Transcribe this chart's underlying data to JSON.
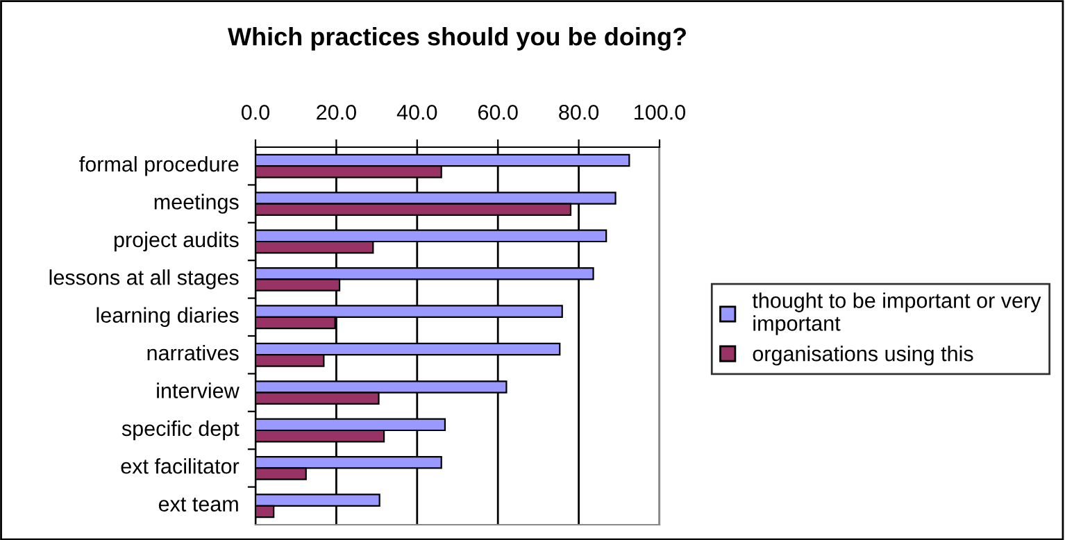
{
  "chart_data": {
    "type": "bar",
    "orientation": "horizontal",
    "title": "Which practices should you be doing?",
    "categories": [
      "formal procedure",
      "meetings",
      "project audits",
      "lessons at all stages",
      "learning diaries",
      "narratives",
      "interview",
      "specific dept",
      "ext facilitator",
      "ext team"
    ],
    "series": [
      {
        "name": "thought to be important or very\nimportant",
        "color": "#9999ff",
        "values": [
          92.5,
          89.1,
          86.8,
          83.6,
          75.9,
          75.3,
          62.1,
          46.9,
          46.0,
          30.7
        ]
      },
      {
        "name": "organisations using this",
        "color": "#993366",
        "values": [
          46.0,
          78.0,
          29.1,
          20.8,
          19.7,
          16.9,
          30.5,
          31.8,
          12.5,
          4.5
        ]
      }
    ],
    "xlim": [
      0,
      100
    ],
    "xticks": [
      {
        "value": 0,
        "label": "0.0"
      },
      {
        "value": 20,
        "label": "20.0"
      },
      {
        "value": 40,
        "label": "40.0"
      },
      {
        "value": 60,
        "label": "60.0"
      },
      {
        "value": 80,
        "label": "80.0"
      },
      {
        "value": 100,
        "label": "100.0"
      }
    ],
    "grid": "x",
    "legend": "right"
  }
}
